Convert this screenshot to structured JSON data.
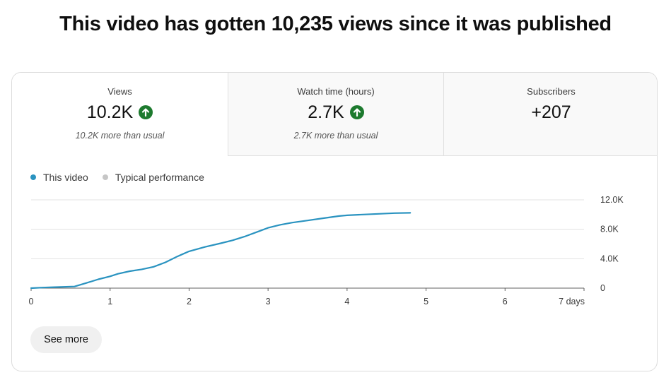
{
  "headline": "This video has gotten 10,235 views since it was published",
  "tabs": [
    {
      "label": "Views",
      "value": "10.2K",
      "trend": "up-arrow-icon",
      "note": "10.2K more than usual",
      "selected": true
    },
    {
      "label": "Watch time (hours)",
      "value": "2.7K",
      "trend": "up-arrow-icon",
      "note": "2.7K more than usual",
      "selected": false
    },
    {
      "label": "Subscribers",
      "value": "+207",
      "selected": false
    }
  ],
  "colors": {
    "this_video": "#2a93c0",
    "typical": "#c6c6c6",
    "trend_up": "#1d7a2e"
  },
  "legend": [
    {
      "label": "This video",
      "color": "#2a93c0"
    },
    {
      "label": "Typical performance",
      "color": "#c6c6c6"
    }
  ],
  "see_more_label": "See more",
  "chart_data": {
    "type": "line",
    "x_ticks": [
      0,
      1,
      2,
      3,
      4,
      5,
      6,
      7
    ],
    "x_tick_labels": [
      "0",
      "1",
      "2",
      "3",
      "4",
      "5",
      "6",
      "7 days"
    ],
    "xlim": [
      0,
      7
    ],
    "y_ticks": [
      0,
      4000,
      8000,
      12000
    ],
    "y_tick_labels": [
      "0",
      "4.0K",
      "8.0K",
      "12.0K"
    ],
    "ylim": [
      0,
      12000
    ],
    "grid": true,
    "legend_position": "top-left",
    "series": [
      {
        "name": "This video",
        "color": "#2a93c0",
        "x": [
          0,
          0.15,
          0.3,
          0.55,
          0.7,
          0.85,
          1.0,
          1.1,
          1.25,
          1.4,
          1.55,
          1.7,
          1.85,
          2.0,
          2.2,
          2.4,
          2.55,
          2.7,
          2.9,
          3.0,
          3.15,
          3.3,
          3.5,
          3.7,
          3.9,
          4.0,
          4.2,
          4.4,
          4.6,
          4.8
        ],
        "y": [
          0,
          80,
          130,
          220,
          700,
          1200,
          1600,
          1950,
          2300,
          2550,
          2900,
          3500,
          4300,
          5000,
          5600,
          6100,
          6500,
          7000,
          7800,
          8200,
          8600,
          8900,
          9200,
          9500,
          9800,
          9900,
          10000,
          10100,
          10200,
          10235
        ]
      }
    ]
  }
}
